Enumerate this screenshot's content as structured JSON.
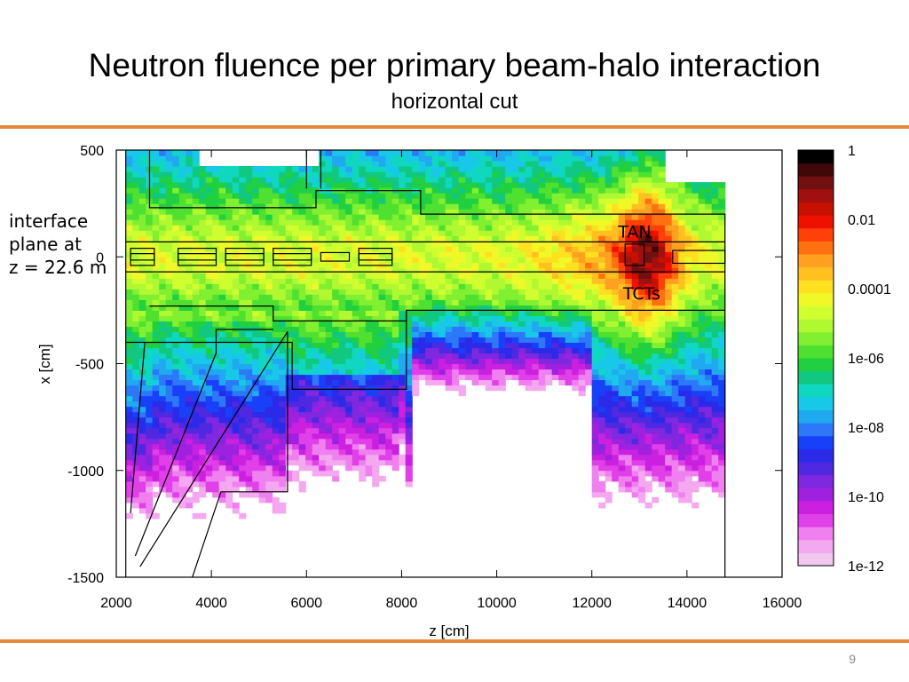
{
  "slide": {
    "title": "Neutron fluence per primary beam-halo interaction",
    "subtitle": "horizontal cut",
    "side_note": [
      "interface",
      "plane at",
      "z = 22.6 m"
    ],
    "page_number": "9"
  },
  "colors": {
    "accent_rule": "#e8883a",
    "colormap": [
      "#f0c8f0",
      "#f3a8f0",
      "#f080f0",
      "#e040e8",
      "#cc20e0",
      "#a020e0",
      "#8028e0",
      "#5028e0",
      "#2a2ae8",
      "#1840f8",
      "#2c78f8",
      "#20a8f0",
      "#18c8e8",
      "#10d8c0",
      "#10c880",
      "#20d040",
      "#50e030",
      "#80f030",
      "#b0f830",
      "#d0ff30",
      "#f0f828",
      "#ffe020",
      "#ffc020",
      "#ffa020",
      "#ff7010",
      "#ff4008",
      "#f01000",
      "#c81000",
      "#a01010",
      "#701010",
      "#400808",
      "#000000"
    ]
  },
  "chart_data": {
    "type": "heatmap",
    "title": "Neutron fluence per primary beam-halo interaction",
    "xlabel": "z [cm]",
    "ylabel": "x [cm]",
    "xlim": [
      2000,
      16000
    ],
    "ylim": [
      -1500,
      500
    ],
    "x_ticks": [
      "2000",
      "4000",
      "6000",
      "8000",
      "10000",
      "12000",
      "14000",
      "16000"
    ],
    "y_ticks": [
      "500",
      "0",
      "-500",
      "-1000",
      "-1500"
    ],
    "x_tick_values": [
      2000,
      4000,
      6000,
      8000,
      10000,
      12000,
      14000,
      16000
    ],
    "y_tick_values": [
      500,
      0,
      -500,
      -1000,
      -1500
    ],
    "data_extent_z": [
      2200,
      14800
    ],
    "colorbar": {
      "scale": "log",
      "range": [
        1e-12,
        1
      ],
      "tick_labels": [
        "1",
        "0.01",
        "0.0001",
        "1e-06",
        "1e-08",
        "1e-10",
        "1e-12"
      ],
      "tick_values": [
        1,
        0.01,
        0.0001,
        1e-06,
        1e-08,
        1e-10,
        1e-12
      ]
    },
    "annotations": [
      {
        "text": "TAN",
        "z": 12900,
        "x": 120
      },
      {
        "text": "TCTs",
        "z": 13050,
        "x": -170
      }
    ]
  }
}
